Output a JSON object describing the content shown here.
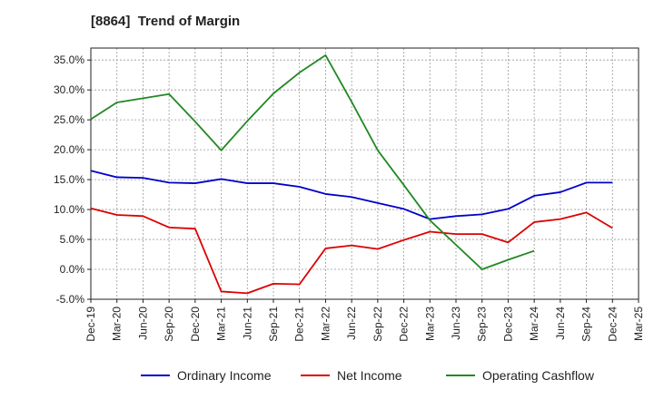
{
  "chart_data": {
    "type": "line",
    "title": "[8864]  Trend of Margin",
    "xlabel": "",
    "ylabel": "",
    "x": [
      "Dec-19",
      "Mar-20",
      "Jun-20",
      "Sep-20",
      "Dec-20",
      "Mar-21",
      "Jun-21",
      "Sep-21",
      "Dec-21",
      "Mar-22",
      "Jun-22",
      "Sep-22",
      "Dec-22",
      "Mar-23",
      "Jun-23",
      "Sep-23",
      "Dec-23",
      "Mar-24",
      "Jun-24",
      "Sep-24",
      "Dec-24",
      "Mar-25"
    ],
    "ylim": [
      -5,
      37
    ],
    "yticks": [
      -5,
      0,
      5,
      10,
      15,
      20,
      25,
      30,
      35
    ],
    "ytick_labels": [
      "-5.0%",
      "0.0%",
      "5.0%",
      "10.0%",
      "15.0%",
      "20.0%",
      "25.0%",
      "30.0%",
      "35.0%"
    ],
    "grid": true,
    "legend_position": "bottom",
    "series": [
      {
        "name": "Ordinary Income",
        "color": "#0000cc",
        "values": [
          16.5,
          15.4,
          15.3,
          14.5,
          14.4,
          15.1,
          14.4,
          14.4,
          13.8,
          12.6,
          12.1,
          11.1,
          10.1,
          8.4,
          8.9,
          9.2,
          10.1,
          12.3,
          12.9,
          14.5,
          14.5,
          null
        ]
      },
      {
        "name": "Net Income",
        "color": "#dd0000",
        "values": [
          10.2,
          9.1,
          8.9,
          7.0,
          6.8,
          -3.7,
          -4.0,
          -2.4,
          -2.5,
          3.5,
          4.0,
          3.4,
          4.9,
          6.3,
          5.9,
          5.9,
          4.5,
          7.9,
          8.4,
          9.5,
          6.9,
          null
        ]
      },
      {
        "name": "Operating Cashflow",
        "color": "#228822",
        "values": [
          25.1,
          27.9,
          28.6,
          29.3,
          24.7,
          19.9,
          24.8,
          29.4,
          32.9,
          35.8,
          28.0,
          19.9,
          14.1,
          8.2,
          4.1,
          0.0,
          1.6,
          3.1,
          null,
          null,
          null,
          null
        ]
      }
    ]
  }
}
